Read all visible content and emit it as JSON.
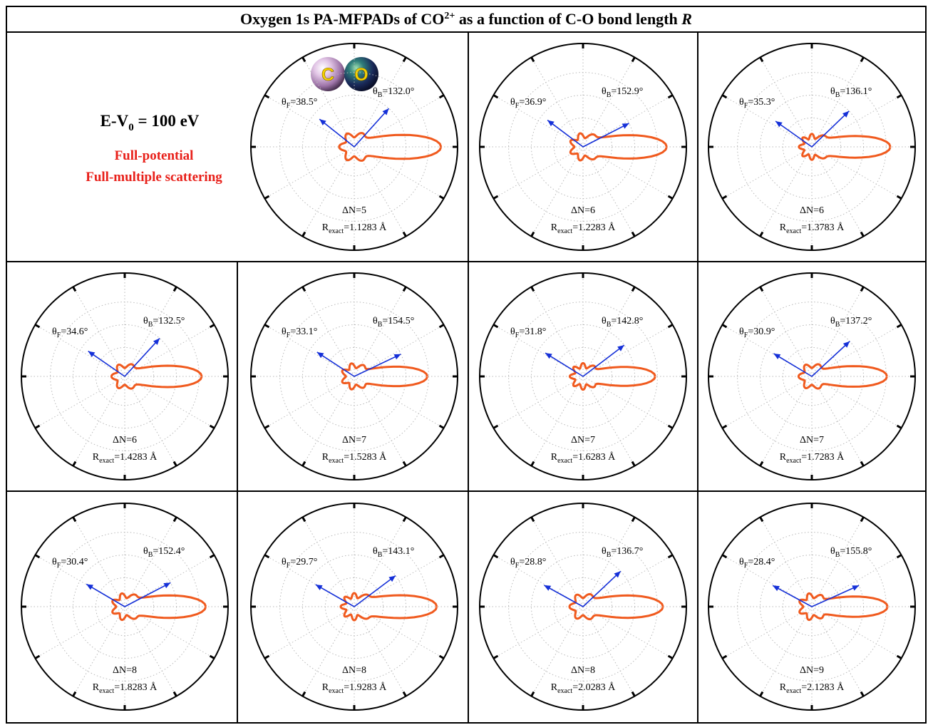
{
  "title": {
    "main": "Oxygen 1s PA-MFPADs of CO",
    "superscript": "2+",
    "rest": " as a function of C-O bond length ",
    "italic": "R"
  },
  "legend": {
    "energy_prefix": "E-V",
    "energy_subscript": "0",
    "energy_rest": " = 100 eV",
    "line1": "Full-potential",
    "line2": "Full-multiple scattering"
  },
  "molecule": {
    "atom_c": "C",
    "atom_o": "O"
  },
  "colors": {
    "curve": "#f05a1e",
    "arrow": "#1530d8",
    "method_text": "#e8201a",
    "frame": "#000000",
    "grid": "#b8b8b8"
  },
  "chart_data": [
    {
      "type": "polar",
      "theta_F": "38.5°",
      "theta_B": "132.0°",
      "delta_n": "5",
      "r_exact": "=1.1283 Å"
    },
    {
      "type": "polar",
      "theta_F": "36.9°",
      "theta_B": "152.9°",
      "delta_n": "6",
      "r_exact": "=1.2283 Å"
    },
    {
      "type": "polar",
      "theta_F": "35.3°",
      "theta_B": "136.1°",
      "delta_n": "6",
      "r_exact": "=1.3783 Å"
    },
    {
      "type": "polar",
      "theta_F": "34.6°",
      "theta_B": "132.5°",
      "delta_n": "6",
      "r_exact": "=1.4283 Å"
    },
    {
      "type": "polar",
      "theta_F": "33.1°",
      "theta_B": "154.5°",
      "delta_n": "7",
      "r_exact": "=1.5283 Å"
    },
    {
      "type": "polar",
      "theta_F": "31.8°",
      "theta_B": "142.8°",
      "delta_n": "7",
      "r_exact": "=1.6283 Å"
    },
    {
      "type": "polar",
      "theta_F": "30.9°",
      "theta_B": "137.2°",
      "delta_n": "7",
      "r_exact": "=1.7283 Å"
    },
    {
      "type": "polar",
      "theta_F": "30.4°",
      "theta_B": "152.4°",
      "delta_n": "8",
      "r_exact": "=1.8283 Å"
    },
    {
      "type": "polar",
      "theta_F": "29.7°",
      "theta_B": "143.1°",
      "delta_n": "8",
      "r_exact": "=1.9283 Å"
    },
    {
      "type": "polar",
      "theta_F": "28.8°",
      "theta_B": "136.7°",
      "delta_n": "8",
      "r_exact": "=2.0283 Å"
    },
    {
      "type": "polar",
      "theta_F": "28.4°",
      "theta_B": "155.8°",
      "delta_n": "9",
      "r_exact": "=2.1283 Å"
    }
  ]
}
